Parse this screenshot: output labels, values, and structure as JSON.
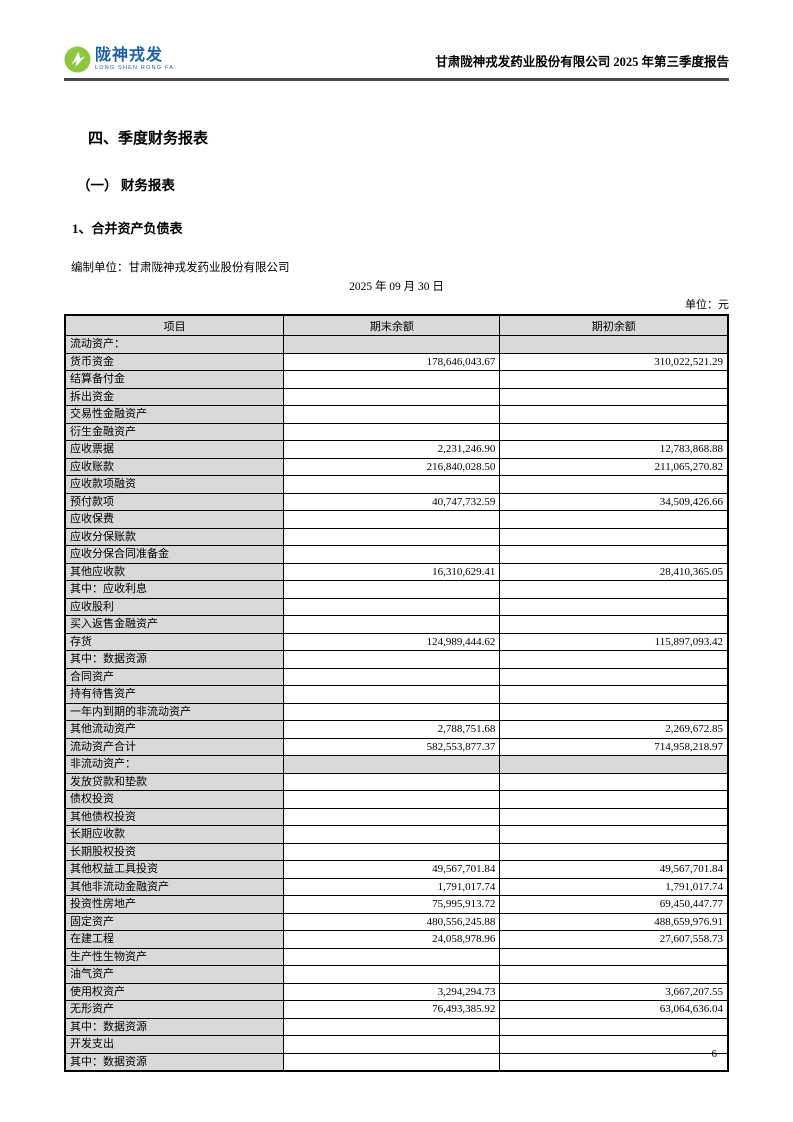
{
  "header": {
    "logo_brand": "陇神戎发",
    "logo_subtitle": "LONG SHEN RONG FA",
    "report_title": "甘肃陇神戎发药业股份有限公司 2025 年第三季度报告"
  },
  "sections": {
    "h1": "四、季度财务报表",
    "h2": "（一） 财务报表",
    "h3": "1、合并资产负债表"
  },
  "meta": {
    "prepared_by": "编制单位：甘肃陇神戎发药业股份有限公司",
    "statement_date": "2025 年 09 月 30 日",
    "unit": "单位：元"
  },
  "colors": {
    "cell_gray": "#d9d9d9",
    "header_rule": "#4a4a4a",
    "logo_green": "#8dc63f",
    "logo_blue": "#1d5fa9"
  },
  "table": {
    "headers": [
      "项目",
      "期末余额",
      "期初余额"
    ],
    "rows": [
      {
        "label": "流动资产：",
        "indent": 0,
        "end": "",
        "begin": "",
        "section": true
      },
      {
        "label": "货币资金",
        "indent": 1,
        "end": "178,646,043.67",
        "begin": "310,022,521.29",
        "section": false
      },
      {
        "label": "结算备付金",
        "indent": 1,
        "end": "",
        "begin": "",
        "section": false
      },
      {
        "label": "拆出资金",
        "indent": 1,
        "end": "",
        "begin": "",
        "section": false
      },
      {
        "label": "交易性金融资产",
        "indent": 1,
        "end": "",
        "begin": "",
        "section": false
      },
      {
        "label": "衍生金融资产",
        "indent": 1,
        "end": "",
        "begin": "",
        "section": false
      },
      {
        "label": "应收票据",
        "indent": 1,
        "end": "2,231,246.90",
        "begin": "12,783,868.88",
        "section": false
      },
      {
        "label": "应收账款",
        "indent": 1,
        "end": "216,840,028.50",
        "begin": "211,065,270.82",
        "section": false
      },
      {
        "label": "应收款项融资",
        "indent": 1,
        "end": "",
        "begin": "",
        "section": false
      },
      {
        "label": "预付款项",
        "indent": 1,
        "end": "40,747,732.59",
        "begin": "34,509,426.66",
        "section": false
      },
      {
        "label": "应收保费",
        "indent": 1,
        "end": "",
        "begin": "",
        "section": false
      },
      {
        "label": "应收分保账款",
        "indent": 1,
        "end": "",
        "begin": "",
        "section": false
      },
      {
        "label": "应收分保合同准备金",
        "indent": 1,
        "end": "",
        "begin": "",
        "section": false
      },
      {
        "label": "其他应收款",
        "indent": 1,
        "end": "16,310,629.41",
        "begin": "28,410,365.05",
        "section": false
      },
      {
        "label": "其中：应收利息",
        "indent": 2,
        "end": "",
        "begin": "",
        "section": false
      },
      {
        "label": "应收股利",
        "indent": 3,
        "end": "",
        "begin": "",
        "section": false
      },
      {
        "label": "买入返售金融资产",
        "indent": 1,
        "end": "",
        "begin": "",
        "section": false
      },
      {
        "label": "存货",
        "indent": 1,
        "end": "124,989,444.62",
        "begin": "115,897,093.42",
        "section": false
      },
      {
        "label": "其中：数据资源",
        "indent": 2,
        "end": "",
        "begin": "",
        "section": false
      },
      {
        "label": "合同资产",
        "indent": 1,
        "end": "",
        "begin": "",
        "section": false
      },
      {
        "label": "持有待售资产",
        "indent": 1,
        "end": "",
        "begin": "",
        "section": false
      },
      {
        "label": "一年内到期的非流动资产",
        "indent": 1,
        "end": "",
        "begin": "",
        "section": false
      },
      {
        "label": "其他流动资产",
        "indent": 1,
        "end": "2,788,751.68",
        "begin": "2,269,672.85",
        "section": false
      },
      {
        "label": "流动资产合计",
        "indent": 0,
        "end": "582,553,877.37",
        "begin": "714,958,218.97",
        "section": false
      },
      {
        "label": "非流动资产：",
        "indent": 0,
        "end": "",
        "begin": "",
        "section": true
      },
      {
        "label": "发放贷款和垫款",
        "indent": 1,
        "end": "",
        "begin": "",
        "section": false
      },
      {
        "label": "债权投资",
        "indent": 1,
        "end": "",
        "begin": "",
        "section": false
      },
      {
        "label": "其他债权投资",
        "indent": 1,
        "end": "",
        "begin": "",
        "section": false
      },
      {
        "label": "长期应收款",
        "indent": 1,
        "end": "",
        "begin": "",
        "section": false
      },
      {
        "label": "长期股权投资",
        "indent": 1,
        "end": "",
        "begin": "",
        "section": false
      },
      {
        "label": "其他权益工具投资",
        "indent": 1,
        "end": "49,567,701.84",
        "begin": "49,567,701.84",
        "section": false
      },
      {
        "label": "其他非流动金融资产",
        "indent": 1,
        "end": "1,791,017.74",
        "begin": "1,791,017.74",
        "section": false
      },
      {
        "label": "投资性房地产",
        "indent": 1,
        "end": "75,995,913.72",
        "begin": "69,450,447.77",
        "section": false
      },
      {
        "label": "固定资产",
        "indent": 1,
        "end": "480,556,245.88",
        "begin": "488,659,976.91",
        "section": false
      },
      {
        "label": "在建工程",
        "indent": 1,
        "end": "24,058,978.96",
        "begin": "27,607,558.73",
        "section": false
      },
      {
        "label": "生产性生物资产",
        "indent": 1,
        "end": "",
        "begin": "",
        "section": false
      },
      {
        "label": "油气资产",
        "indent": 1,
        "end": "",
        "begin": "",
        "section": false
      },
      {
        "label": "使用权资产",
        "indent": 1,
        "end": "3,294,294.73",
        "begin": "3,667,207.55",
        "section": false
      },
      {
        "label": "无形资产",
        "indent": 1,
        "end": "76,493,385.92",
        "begin": "63,064,636.04",
        "section": false
      },
      {
        "label": "其中：数据资源",
        "indent": 2,
        "end": "",
        "begin": "",
        "section": false
      },
      {
        "label": "开发支出",
        "indent": 1,
        "end": "",
        "begin": "",
        "section": false
      },
      {
        "label": "其中：数据资源",
        "indent": 2,
        "end": "",
        "begin": "",
        "section": false
      }
    ]
  },
  "footer": {
    "page_number": "6"
  }
}
